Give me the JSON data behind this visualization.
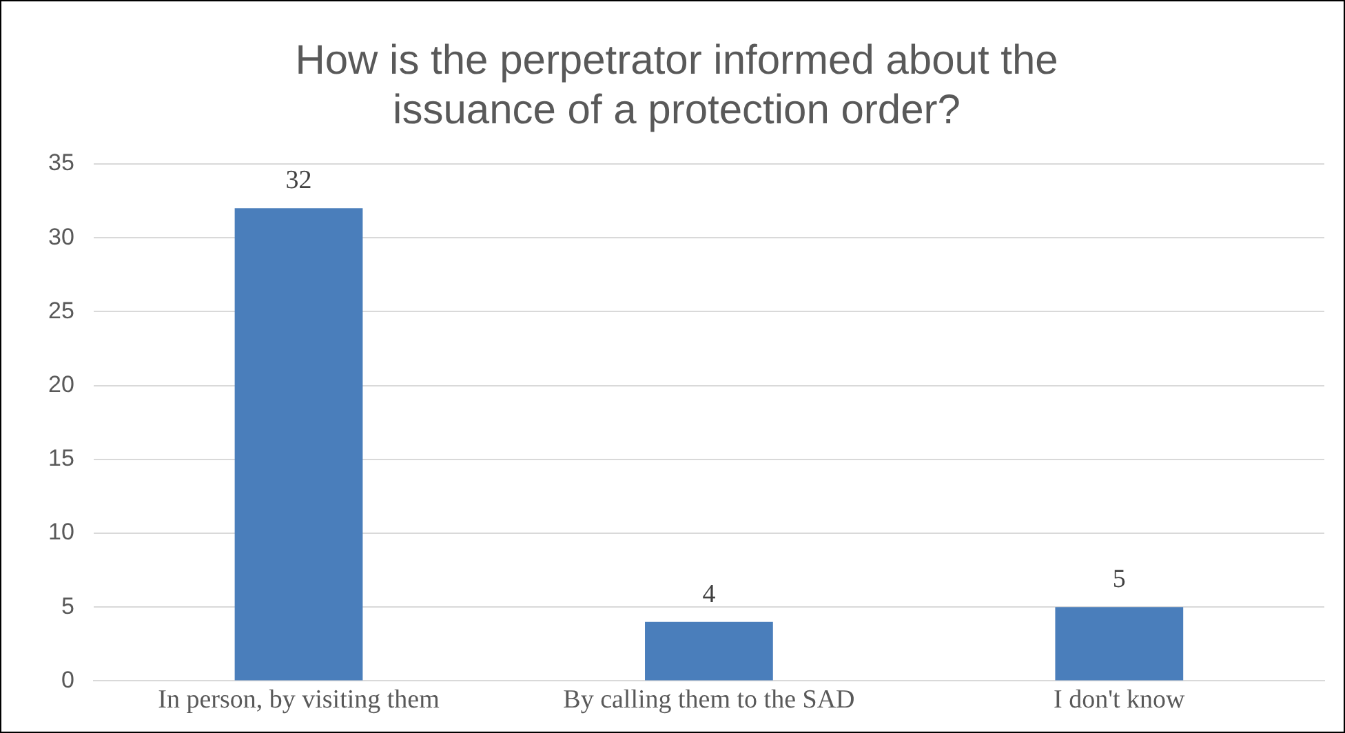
{
  "chart_data": {
    "type": "bar",
    "title": "How is the perpetrator informed about the issuance of a protection order?",
    "categories": [
      "In person, by visiting them",
      "By calling them to the SAD",
      "I don't know"
    ],
    "values": [
      32,
      4,
      5
    ],
    "color": "#4a7ebb",
    "ylim": [
      0,
      35
    ],
    "yticks": [
      0,
      5,
      10,
      15,
      20,
      25,
      30,
      35
    ],
    "grid": "y",
    "data_labels": true
  }
}
